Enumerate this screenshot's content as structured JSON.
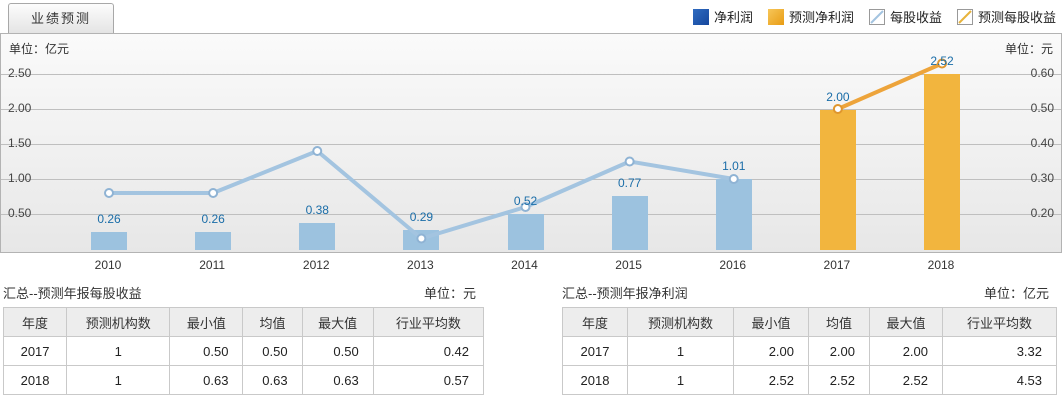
{
  "tab": {
    "label": "业绩预测"
  },
  "legend": [
    {
      "id": "net-profit",
      "label": "净利润",
      "type": "bar",
      "color": "#16479d",
      "color_light": "#2f6bc0"
    },
    {
      "id": "forecast-net-profit",
      "label": "预测净利润",
      "type": "bar",
      "color": "#e89c14",
      "color_light": "#f7c659"
    },
    {
      "id": "eps",
      "label": "每股收益",
      "type": "line",
      "color": "#a3c4e0"
    },
    {
      "id": "forecast-eps",
      "label": "预测每股收益",
      "type": "line",
      "color": "#e8b33c"
    }
  ],
  "chart": {
    "left_unit": "单位：亿元",
    "right_unit": "单位：元",
    "left_ticks": [
      "2.50",
      "2.00",
      "1.50",
      "1.00",
      "0.50"
    ],
    "right_ticks": [
      "0.60",
      "0.50",
      "0.40",
      "0.30",
      "0.20"
    ]
  },
  "chart_data": {
    "type": "combo-bar-line",
    "categories": [
      "2010",
      "2011",
      "2012",
      "2013",
      "2014",
      "2015",
      "2016",
      "2017",
      "2018"
    ],
    "series": [
      {
        "name": "净利润",
        "type": "bar",
        "axis": "left",
        "unit": "亿元",
        "color": "#9cc2df",
        "values": [
          0.26,
          0.26,
          0.38,
          0.29,
          0.52,
          0.77,
          1.01,
          null,
          null
        ]
      },
      {
        "name": "预测净利润",
        "type": "bar",
        "axis": "left",
        "unit": "亿元",
        "color": "#f2b53e",
        "values": [
          null,
          null,
          null,
          null,
          null,
          null,
          null,
          2.0,
          2.52
        ]
      },
      {
        "name": "每股收益",
        "type": "line",
        "axis": "right",
        "unit": "元",
        "color": "#a3c4e0",
        "marker_stroke": "#8fb3d4",
        "values": [
          0.26,
          0.26,
          0.38,
          0.13,
          0.22,
          0.35,
          0.3,
          null,
          null
        ]
      },
      {
        "name": "预测每股收益",
        "type": "line",
        "axis": "right",
        "unit": "元",
        "color": "#eda43b",
        "marker_stroke": "#df962e",
        "values": [
          null,
          null,
          null,
          null,
          null,
          null,
          null,
          0.5,
          0.63
        ]
      }
    ],
    "bar_labels": [
      "0.26",
      "0.26",
      "0.38",
      "0.29",
      "0.52",
      "0.77",
      "1.01",
      "2.00",
      "2.52"
    ],
    "left_axis": {
      "label": "单位：亿元",
      "ticks": [
        2.5,
        2.0,
        1.5,
        1.0,
        0.5
      ],
      "min": 0,
      "max": 2.75
    },
    "right_axis": {
      "label": "单位：元",
      "ticks": [
        0.6,
        0.5,
        0.4,
        0.3,
        0.2
      ],
      "min": 0.1,
      "max": 0.675
    },
    "grid": true,
    "legend_position": "top-right"
  },
  "tables": [
    {
      "title": "汇总--预测年报每股收益",
      "unit": "单位：元",
      "headers": [
        "年度",
        "预测机构数",
        "最小值",
        "均值",
        "最大值",
        "行业平均数"
      ],
      "rows": [
        [
          "2017",
          "1",
          "0.50",
          "0.50",
          "0.50",
          "0.42"
        ],
        [
          "2018",
          "1",
          "0.63",
          "0.63",
          "0.63",
          "0.57"
        ]
      ]
    },
    {
      "title": "汇总--预测年报净利润",
      "unit": "单位：亿元",
      "headers": [
        "年度",
        "预测机构数",
        "最小值",
        "均值",
        "最大值",
        "行业平均数"
      ],
      "rows": [
        [
          "2017",
          "1",
          "2.00",
          "2.00",
          "2.00",
          "3.32"
        ],
        [
          "2018",
          "1",
          "2.52",
          "2.52",
          "2.52",
          "4.53"
        ]
      ]
    }
  ]
}
